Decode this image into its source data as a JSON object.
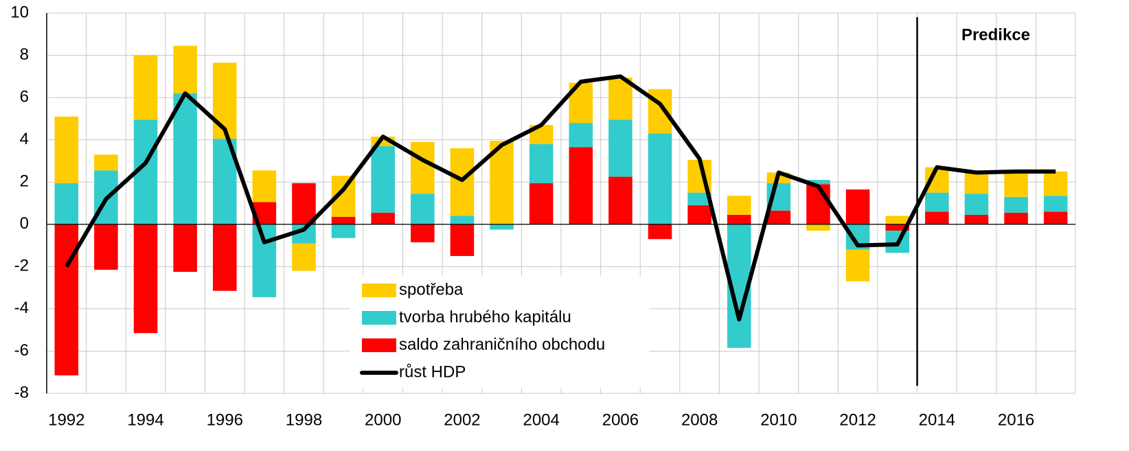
{
  "chart_data": {
    "type": "bar",
    "stacked": true,
    "categories": [
      "1992",
      null,
      "1994",
      null,
      "1996",
      null,
      "1998",
      null,
      "2000",
      null,
      "2002",
      null,
      "2004",
      null,
      "2006",
      null,
      "2008",
      null,
      "2010",
      null,
      "2012",
      null,
      "2014",
      null,
      "2016",
      null
    ],
    "series": [
      {
        "name": "spotřeba",
        "color": "#ffcc00",
        "values": [
          3.15,
          0.75,
          3.05,
          2.25,
          3.6,
          1.5,
          -1.3,
          1.95,
          0.45,
          2.45,
          3.2,
          3.95,
          0.9,
          1.9,
          2.0,
          2.1,
          1.55,
          0.9,
          0.5,
          -0.3,
          -1.5,
          0.4,
          1.2,
          1.0,
          1.2,
          1.15
        ]
      },
      {
        "name": "tvorba hrubého kapitálu",
        "color": "#33cccc",
        "values": [
          1.95,
          2.55,
          4.95,
          6.2,
          4.05,
          -3.45,
          -0.9,
          -0.65,
          3.15,
          1.45,
          0.4,
          -0.25,
          1.85,
          1.15,
          2.7,
          4.3,
          0.6,
          -5.85,
          1.3,
          0.2,
          -1.2,
          -1.05,
          0.9,
          1.0,
          0.75,
          0.75
        ]
      },
      {
        "name": "saldo zahraničního obchodu",
        "color": "#ff0000",
        "values": [
          -7.15,
          -2.15,
          -5.15,
          -2.25,
          -3.15,
          1.05,
          1.95,
          0.35,
          0.55,
          -0.85,
          -1.5,
          0,
          1.95,
          3.65,
          2.25,
          -0.7,
          0.9,
          0.45,
          0.65,
          1.9,
          1.65,
          -0.3,
          0.6,
          0.45,
          0.55,
          0.6
        ]
      },
      {
        "name": "růst HDP",
        "type": "line",
        "color": "#000000",
        "values": [
          -2.0,
          1.2,
          2.9,
          6.2,
          4.5,
          -0.85,
          -0.25,
          1.65,
          4.15,
          3.05,
          2.1,
          3.75,
          4.7,
          6.75,
          7.0,
          5.7,
          3.1,
          -4.5,
          2.45,
          1.8,
          -1.0,
          -0.95,
          2.7,
          2.45,
          2.5,
          2.5
        ]
      }
    ],
    "annotations": [
      "Predikce"
    ],
    "ylim": [
      -8,
      10
    ],
    "yticks": [
      -8,
      -6,
      -4,
      -2,
      0,
      2,
      4,
      6,
      8,
      10
    ],
    "grid": true
  }
}
